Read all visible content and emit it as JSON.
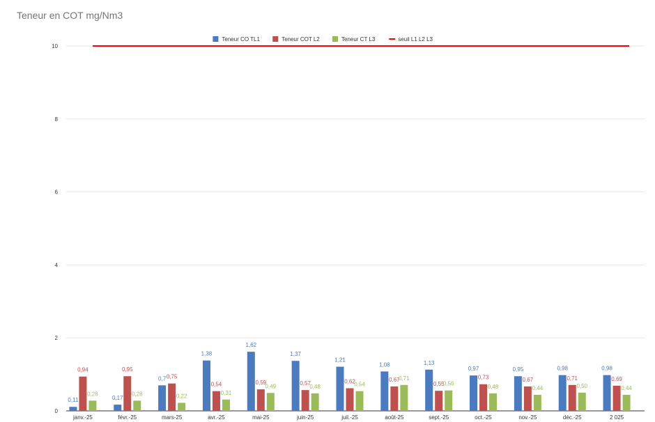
{
  "chart_data": {
    "type": "bar",
    "title": "Teneur en COT mg/Nm3",
    "xlabel": "",
    "ylabel": "",
    "ylim": [
      0,
      10
    ],
    "yticks": [
      0,
      2,
      4,
      6,
      8,
      10
    ],
    "ytick_labels": [
      "0",
      "2",
      "4",
      "6",
      "8",
      "10"
    ],
    "grid": true,
    "legend_position": "top",
    "categories": [
      "janv.-25",
      "févr.-25",
      "mars-25",
      "avr.-25",
      "mai-25",
      "juin-25",
      "juil.-25",
      "août-25",
      "sept.-25",
      "oct.-25",
      "nov.-25",
      "déc.-25",
      "2 025"
    ],
    "series": [
      {
        "name": "Teneur CO TL1",
        "color": "#4a7abf",
        "values": [
          0.11,
          0.17,
          0.7,
          1.38,
          1.62,
          1.37,
          1.21,
          1.08,
          1.13,
          0.97,
          0.95,
          0.98,
          0.98
        ],
        "labels": [
          "0,11",
          "0,17",
          "0,7",
          "1,38",
          "1,62",
          "1,37",
          "1,21",
          "1,08",
          "1,13",
          "0,97",
          "0,95",
          "0,98",
          "0,98"
        ]
      },
      {
        "name": "Teneur COT L2",
        "color": "#c0504d",
        "values": [
          0.94,
          0.95,
          0.75,
          0.54,
          0.59,
          0.57,
          0.62,
          0.67,
          0.55,
          0.73,
          0.67,
          0.71,
          0.69
        ],
        "labels": [
          "0,94",
          "0,95",
          "0,75",
          "0,54",
          "0,59",
          "0,57",
          "0,62",
          "0,67",
          "0,55",
          "0,73",
          "0,67",
          "0,71",
          "0,69"
        ]
      },
      {
        "name": "Teneur CT L3",
        "color": "#9bbb59",
        "values": [
          0.28,
          0.28,
          0.22,
          0.31,
          0.49,
          0.48,
          0.54,
          0.71,
          0.56,
          0.48,
          0.44,
          0.5,
          0.44
        ],
        "labels": [
          "0,28",
          "0,28",
          "0,22",
          "0,31",
          "0,49",
          "0,48",
          "0,54",
          "0,71",
          "0,56",
          "0,48",
          "0,44",
          "0,50",
          "0,44"
        ]
      }
    ],
    "line_series": [
      {
        "name": "seuil L1 L2 L3",
        "color": "#ff0000",
        "value": 10
      }
    ]
  }
}
